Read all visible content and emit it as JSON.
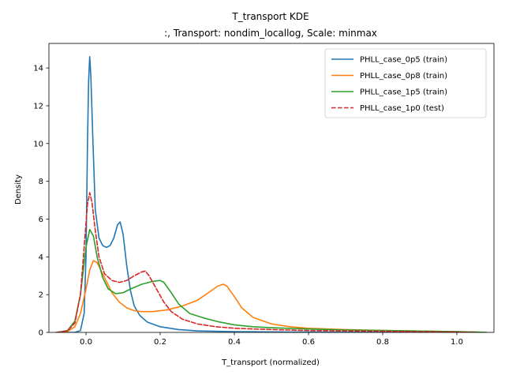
{
  "chart_data": {
    "type": "line",
    "title": "T_transport KDE",
    "subtitle": ":, Transport: nondim_locallog, Scale: minmax",
    "xlabel": "T_transport (normalized)",
    "ylabel": "Density",
    "xlim": [
      -0.1,
      1.1
    ],
    "ylim": [
      0,
      15.3
    ],
    "xticks": [
      0.0,
      0.2,
      0.4,
      0.6,
      0.8,
      1.0
    ],
    "xtick_labels": [
      "0.0",
      "0.2",
      "0.4",
      "0.6",
      "0.8",
      "1.0"
    ],
    "yticks": [
      0,
      2,
      4,
      6,
      8,
      10,
      12,
      14
    ],
    "ytick_labels": [
      "0",
      "2",
      "4",
      "6",
      "8",
      "10",
      "12",
      "14"
    ],
    "grid": false,
    "legend_position": "top-right",
    "series": [
      {
        "name": "PHLL_case_0p5 (train)",
        "color": "#1f77b4",
        "dash": "solid",
        "points": [
          [
            -0.08,
            0
          ],
          [
            -0.03,
            0
          ],
          [
            -0.015,
            0.1
          ],
          [
            -0.005,
            1.0
          ],
          [
            0.0,
            4.0
          ],
          [
            0.004,
            10.0
          ],
          [
            0.007,
            13.3
          ],
          [
            0.01,
            14.6
          ],
          [
            0.013,
            13.6
          ],
          [
            0.018,
            10.5
          ],
          [
            0.025,
            6.5
          ],
          [
            0.035,
            5.0
          ],
          [
            0.045,
            4.6
          ],
          [
            0.055,
            4.5
          ],
          [
            0.065,
            4.6
          ],
          [
            0.075,
            5.0
          ],
          [
            0.085,
            5.7
          ],
          [
            0.092,
            5.85
          ],
          [
            0.1,
            5.2
          ],
          [
            0.11,
            3.5
          ],
          [
            0.12,
            2.2
          ],
          [
            0.13,
            1.4
          ],
          [
            0.145,
            0.9
          ],
          [
            0.165,
            0.55
          ],
          [
            0.2,
            0.3
          ],
          [
            0.25,
            0.15
          ],
          [
            0.3,
            0.08
          ],
          [
            0.4,
            0.04
          ],
          [
            0.55,
            0.02
          ],
          [
            0.7,
            0.01
          ],
          [
            0.85,
            0.005
          ],
          [
            1.0,
            0.0
          ]
        ]
      },
      {
        "name": "PHLL_case_0p8 (train)",
        "color": "#ff7f0e",
        "dash": "solid",
        "points": [
          [
            -0.08,
            0
          ],
          [
            -0.05,
            0.05
          ],
          [
            -0.03,
            0.3
          ],
          [
            -0.015,
            1.0
          ],
          [
            0.0,
            2.3
          ],
          [
            0.01,
            3.3
          ],
          [
            0.02,
            3.8
          ],
          [
            0.03,
            3.7
          ],
          [
            0.05,
            2.9
          ],
          [
            0.07,
            2.1
          ],
          [
            0.09,
            1.6
          ],
          [
            0.11,
            1.3
          ],
          [
            0.13,
            1.15
          ],
          [
            0.15,
            1.1
          ],
          [
            0.18,
            1.1
          ],
          [
            0.22,
            1.2
          ],
          [
            0.26,
            1.4
          ],
          [
            0.3,
            1.7
          ],
          [
            0.33,
            2.1
          ],
          [
            0.355,
            2.45
          ],
          [
            0.37,
            2.55
          ],
          [
            0.38,
            2.45
          ],
          [
            0.4,
            1.9
          ],
          [
            0.42,
            1.3
          ],
          [
            0.45,
            0.8
          ],
          [
            0.5,
            0.45
          ],
          [
            0.55,
            0.3
          ],
          [
            0.6,
            0.22
          ],
          [
            0.7,
            0.15
          ],
          [
            0.8,
            0.1
          ],
          [
            0.9,
            0.07
          ],
          [
            1.0,
            0.04
          ],
          [
            1.05,
            0.02
          ],
          [
            1.08,
            0.0
          ]
        ]
      },
      {
        "name": "PHLL_case_1p5 (train)",
        "color": "#2ca02c",
        "dash": "solid",
        "points": [
          [
            -0.08,
            0
          ],
          [
            -0.05,
            0.1
          ],
          [
            -0.03,
            0.6
          ],
          [
            -0.015,
            2.0
          ],
          [
            0.0,
            4.5
          ],
          [
            0.01,
            5.45
          ],
          [
            0.02,
            5.1
          ],
          [
            0.03,
            4.0
          ],
          [
            0.045,
            2.9
          ],
          [
            0.06,
            2.3
          ],
          [
            0.08,
            2.05
          ],
          [
            0.1,
            2.1
          ],
          [
            0.12,
            2.3
          ],
          [
            0.15,
            2.55
          ],
          [
            0.18,
            2.7
          ],
          [
            0.2,
            2.75
          ],
          [
            0.21,
            2.65
          ],
          [
            0.23,
            2.1
          ],
          [
            0.25,
            1.5
          ],
          [
            0.28,
            1.0
          ],
          [
            0.32,
            0.75
          ],
          [
            0.36,
            0.55
          ],
          [
            0.4,
            0.4
          ],
          [
            0.45,
            0.3
          ],
          [
            0.5,
            0.25
          ],
          [
            0.6,
            0.18
          ],
          [
            0.7,
            0.13
          ],
          [
            0.8,
            0.1
          ],
          [
            0.9,
            0.07
          ],
          [
            1.0,
            0.04
          ],
          [
            1.05,
            0.02
          ],
          [
            1.08,
            0.0
          ]
        ]
      },
      {
        "name": "PHLL_case_1p0 (test)",
        "color": "#d62728",
        "dash": "dashed",
        "points": [
          [
            -0.08,
            0
          ],
          [
            -0.05,
            0.08
          ],
          [
            -0.03,
            0.5
          ],
          [
            -0.015,
            2.0
          ],
          [
            -0.005,
            4.5
          ],
          [
            0.004,
            6.8
          ],
          [
            0.01,
            7.4
          ],
          [
            0.016,
            6.9
          ],
          [
            0.025,
            5.4
          ],
          [
            0.035,
            4.0
          ],
          [
            0.05,
            3.1
          ],
          [
            0.07,
            2.75
          ],
          [
            0.09,
            2.65
          ],
          [
            0.11,
            2.75
          ],
          [
            0.13,
            3.0
          ],
          [
            0.15,
            3.2
          ],
          [
            0.16,
            3.25
          ],
          [
            0.17,
            3.0
          ],
          [
            0.19,
            2.3
          ],
          [
            0.21,
            1.6
          ],
          [
            0.23,
            1.1
          ],
          [
            0.26,
            0.7
          ],
          [
            0.3,
            0.45
          ],
          [
            0.35,
            0.3
          ],
          [
            0.4,
            0.22
          ],
          [
            0.5,
            0.15
          ],
          [
            0.6,
            0.1
          ],
          [
            0.7,
            0.08
          ],
          [
            0.8,
            0.06
          ],
          [
            0.9,
            0.04
          ],
          [
            1.0,
            0.02
          ],
          [
            1.05,
            0.0
          ]
        ]
      }
    ]
  }
}
